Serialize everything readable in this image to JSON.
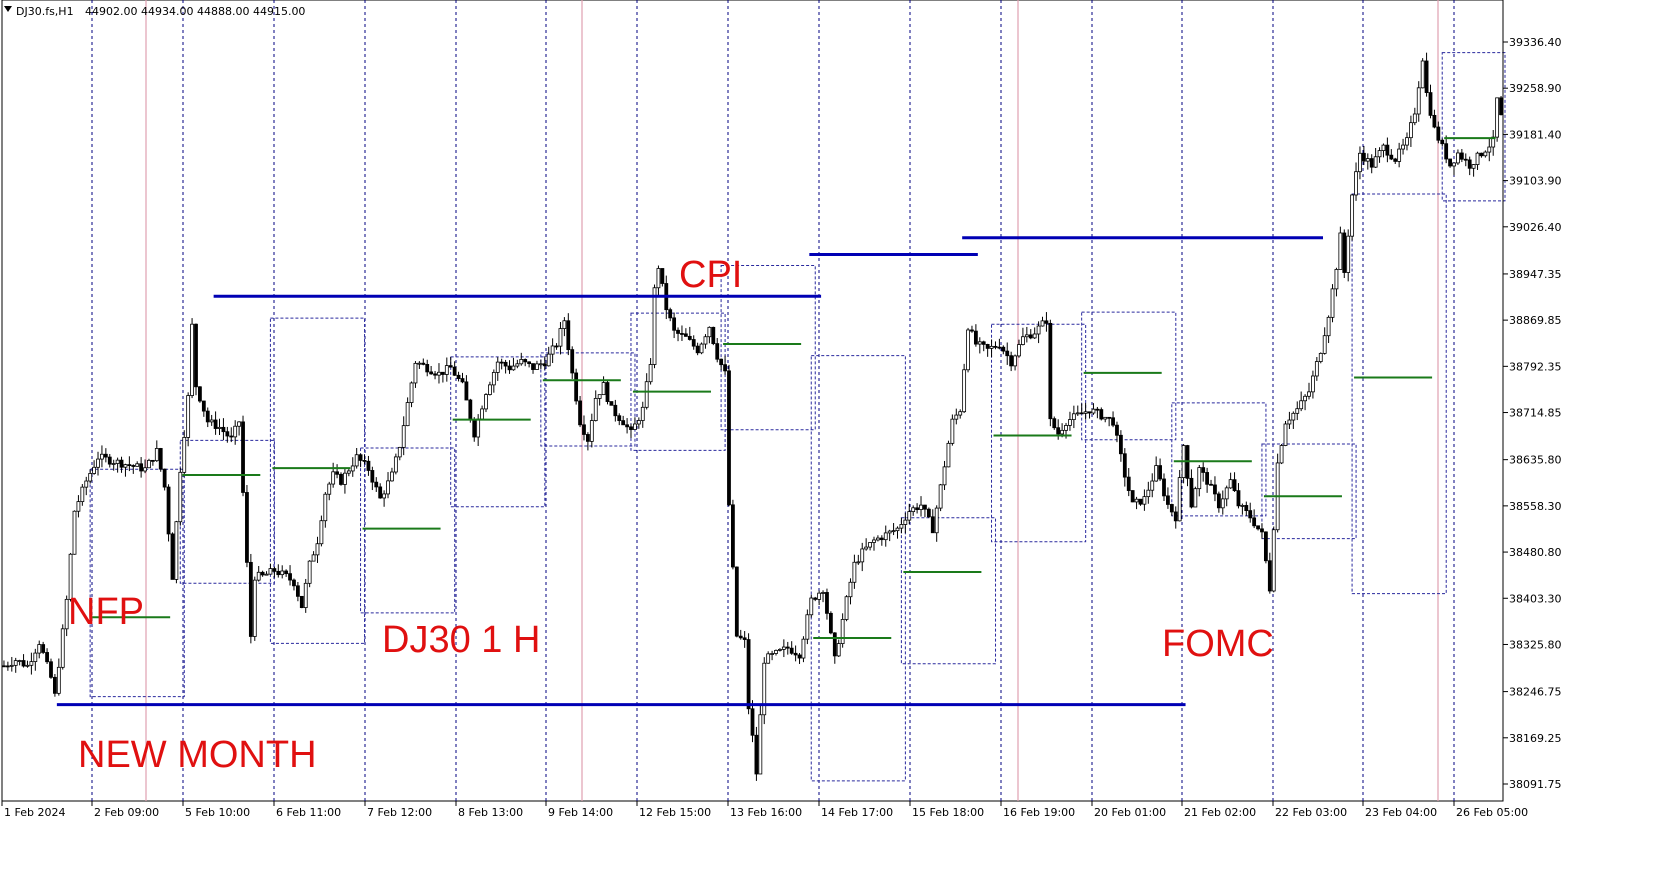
{
  "header": {
    "symbol": "DJ30.fs,H1",
    "ohlc": "44902.00 44934.00 44888.00 44915.00",
    "menu_icon": "triangle-down-icon"
  },
  "colors": {
    "candle": "#000000",
    "grid": "#000080",
    "period_open": "#e0a0b0",
    "range_box": "#2a2a9e",
    "level_line": "#0000b4",
    "mid_line": "#1a7a1a",
    "annotation": "#e01010"
  },
  "chart_data": {
    "type": "candlestick",
    "timeframe": "H1",
    "grid": true,
    "y_axis": {
      "ticks": [
        "39336.40",
        "39258.90",
        "39181.40",
        "39103.90",
        "39026.40",
        "38947.35",
        "38869.85",
        "38792.35",
        "38714.85",
        "38635.80",
        "38558.30",
        "38480.80",
        "38403.30",
        "38325.80",
        "38246.75",
        "38169.25",
        "38091.75"
      ],
      "range": [
        38070,
        39360
      ]
    },
    "x_axis": {
      "ticks": [
        "1 Feb 2024",
        "2 Feb 09:00",
        "5 Feb 10:00",
        "6 Feb 11:00",
        "7 Feb 12:00",
        "8 Feb 13:00",
        "9 Feb 14:00",
        "12 Feb 15:00",
        "13 Feb 16:00",
        "14 Feb 17:00",
        "15 Feb 18:00",
        "16 Feb 19:00",
        "20 Feb 01:00",
        "21 Feb 02:00",
        "22 Feb 03:00",
        "23 Feb 04:00",
        "26 Feb 05:00"
      ]
    },
    "price_path": [
      [
        0,
        38290
      ],
      [
        3,
        38300
      ],
      [
        6,
        38290
      ],
      [
        9,
        38330
      ],
      [
        12,
        38270
      ],
      [
        13,
        38240
      ],
      [
        16,
        38400
      ],
      [
        18,
        38550
      ],
      [
        21,
        38600
      ],
      [
        24,
        38640
      ],
      [
        30,
        38630
      ],
      [
        36,
        38620
      ],
      [
        39,
        38650
      ],
      [
        41,
        38590
      ],
      [
        43,
        38440
      ],
      [
        45,
        38620
      ],
      [
        47,
        38740
      ],
      [
        48,
        38860
      ],
      [
        49,
        38760
      ],
      [
        52,
        38700
      ],
      [
        55,
        38690
      ],
      [
        58,
        38670
      ],
      [
        60,
        38700
      ],
      [
        61,
        38580
      ],
      [
        63,
        38340
      ],
      [
        64,
        38440
      ],
      [
        66,
        38440
      ],
      [
        69,
        38450
      ],
      [
        72,
        38440
      ],
      [
        74,
        38430
      ],
      [
        76,
        38390
      ],
      [
        78,
        38460
      ],
      [
        80,
        38500
      ],
      [
        82,
        38580
      ],
      [
        84,
        38610
      ],
      [
        86,
        38600
      ],
      [
        90,
        38640
      ],
      [
        93,
        38620
      ],
      [
        96,
        38570
      ],
      [
        99,
        38610
      ],
      [
        101,
        38660
      ],
      [
        103,
        38730
      ],
      [
        105,
        38800
      ],
      [
        108,
        38790
      ],
      [
        111,
        38780
      ],
      [
        114,
        38790
      ],
      [
        117,
        38760
      ],
      [
        120,
        38680
      ],
      [
        123,
        38750
      ],
      [
        126,
        38800
      ],
      [
        129,
        38790
      ],
      [
        132,
        38800
      ],
      [
        135,
        38790
      ],
      [
        138,
        38800
      ],
      [
        141,
        38830
      ],
      [
        143,
        38870
      ],
      [
        145,
        38780
      ],
      [
        147,
        38700
      ],
      [
        149,
        38670
      ],
      [
        151,
        38740
      ],
      [
        153,
        38760
      ],
      [
        155,
        38720
      ],
      [
        158,
        38700
      ],
      [
        160,
        38680
      ],
      [
        163,
        38720
      ],
      [
        165,
        38800
      ],
      [
        166,
        38920
      ],
      [
        167,
        38960
      ],
      [
        169,
        38890
      ],
      [
        171,
        38850
      ],
      [
        174,
        38840
      ],
      [
        177,
        38820
      ],
      [
        180,
        38860
      ],
      [
        182,
        38810
      ],
      [
        184,
        38780
      ],
      [
        185,
        38560
      ],
      [
        187,
        38340
      ],
      [
        189,
        38330
      ],
      [
        190,
        38220
      ],
      [
        191,
        38170
      ],
      [
        192,
        38110
      ],
      [
        194,
        38300
      ],
      [
        197,
        38310
      ],
      [
        200,
        38320
      ],
      [
        203,
        38310
      ],
      [
        206,
        38400
      ],
      [
        209,
        38420
      ],
      [
        212,
        38300
      ],
      [
        215,
        38400
      ],
      [
        217,
        38460
      ],
      [
        219,
        38480
      ],
      [
        222,
        38500
      ],
      [
        225,
        38510
      ],
      [
        228,
        38520
      ],
      [
        231,
        38550
      ],
      [
        234,
        38560
      ],
      [
        237,
        38520
      ],
      [
        239,
        38590
      ],
      [
        242,
        38700
      ],
      [
        244,
        38720
      ],
      [
        246,
        38860
      ],
      [
        248,
        38830
      ],
      [
        251,
        38820
      ],
      [
        254,
        38830
      ],
      [
        257,
        38800
      ],
      [
        260,
        38840
      ],
      [
        263,
        38850
      ],
      [
        266,
        38870
      ],
      [
        267,
        38700
      ],
      [
        269,
        38680
      ],
      [
        271,
        38700
      ],
      [
        274,
        38710
      ],
      [
        277,
        38720
      ],
      [
        280,
        38710
      ],
      [
        283,
        38700
      ],
      [
        286,
        38610
      ],
      [
        288,
        38560
      ],
      [
        291,
        38570
      ],
      [
        294,
        38620
      ],
      [
        297,
        38560
      ],
      [
        299,
        38540
      ],
      [
        301,
        38660
      ],
      [
        303,
        38560
      ],
      [
        305,
        38620
      ],
      [
        307,
        38600
      ],
      [
        310,
        38560
      ],
      [
        313,
        38600
      ],
      [
        315,
        38560
      ],
      [
        318,
        38540
      ],
      [
        321,
        38510
      ],
      [
        323,
        38420
      ],
      [
        325,
        38630
      ],
      [
        327,
        38700
      ],
      [
        330,
        38720
      ],
      [
        333,
        38750
      ],
      [
        336,
        38820
      ],
      [
        338,
        38880
      ],
      [
        340,
        38960
      ],
      [
        341,
        39010
      ],
      [
        342,
        38950
      ],
      [
        344,
        39080
      ],
      [
        346,
        39150
      ],
      [
        349,
        39130
      ],
      [
        352,
        39160
      ],
      [
        355,
        39140
      ],
      [
        358,
        39170
      ],
      [
        360,
        39220
      ],
      [
        362,
        39310
      ],
      [
        363,
        39250
      ],
      [
        365,
        39190
      ],
      [
        367,
        39160
      ],
      [
        369,
        39130
      ],
      [
        371,
        39150
      ],
      [
        374,
        39130
      ],
      [
        377,
        39150
      ],
      [
        380,
        39170
      ],
      [
        381,
        39240
      ],
      [
        382,
        39210
      ]
    ],
    "annotations": [
      "NFP",
      "DJ30 1 H",
      "NEW MONTH",
      "CPI",
      "FOMC"
    ]
  }
}
